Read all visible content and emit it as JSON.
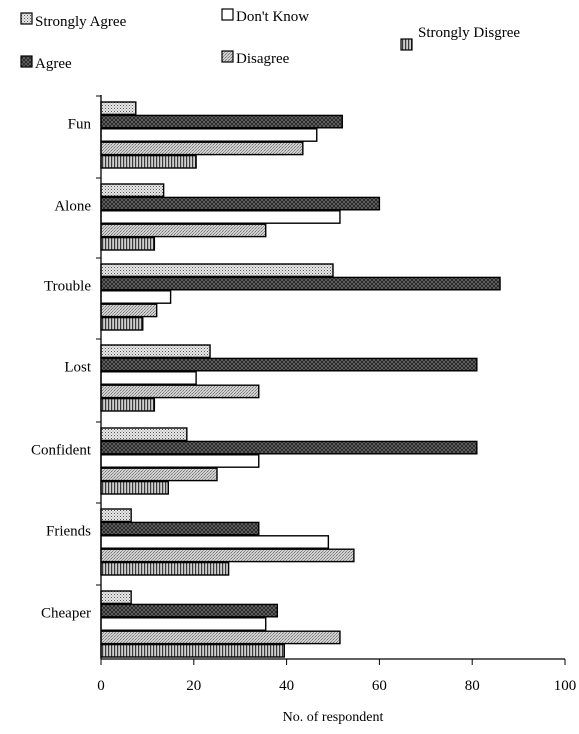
{
  "chart_data": {
    "type": "bar",
    "orientation": "horizontal",
    "xlabel": "No. of respondent",
    "ylabel": "",
    "xlim": [
      0,
      100
    ],
    "xticks": [
      0,
      20,
      40,
      60,
      80,
      100
    ],
    "grid": false,
    "categories": [
      "Fun",
      "Alone",
      "Trouble",
      "Lost",
      "Confident",
      "Friends",
      "Cheaper"
    ],
    "series": [
      {
        "name": "Strongly Agree",
        "pattern": "dots",
        "values": [
          7.5,
          13.5,
          50,
          23.5,
          18.5,
          6.5,
          6.5
        ]
      },
      {
        "name": "Agree",
        "pattern": "crosshatch",
        "values": [
          52,
          60,
          86,
          81,
          81,
          34,
          38
        ]
      },
      {
        "name": "Don't Know",
        "pattern": "white",
        "values": [
          46.5,
          51.5,
          15,
          20.5,
          34,
          49,
          35.5
        ]
      },
      {
        "name": "Disagree",
        "pattern": "fine",
        "values": [
          43.5,
          35.5,
          12,
          34,
          25,
          54.5,
          51.5
        ]
      },
      {
        "name": "Strongly Disgree",
        "pattern": "vlines",
        "values": [
          20.5,
          11.5,
          9,
          11.5,
          14.5,
          27.5,
          39.5
        ]
      }
    ],
    "legend": [
      {
        "label": "Strongly Agree",
        "pattern": "dots"
      },
      {
        "label": "Don't Know",
        "pattern": "white"
      },
      {
        "label": "Strongly Disgree",
        "pattern": "vlines"
      },
      {
        "label": "Agree",
        "pattern": "crosshatch"
      },
      {
        "label": "Disagree",
        "pattern": "fine"
      }
    ],
    "legend_position": "top"
  }
}
